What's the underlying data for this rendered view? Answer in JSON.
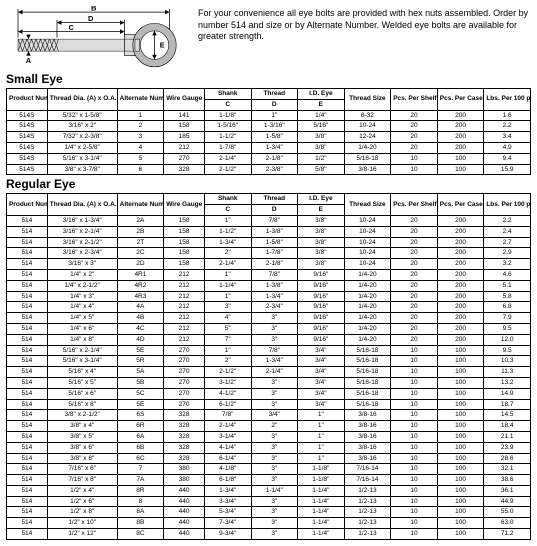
{
  "intro": "For your convenience all eye bolts are provided with hex nuts assembled. Order by number 514 and size or by Alternate Number. Welded eye bolts are available for greater strength.",
  "smallEye": {
    "title": "Small Eye",
    "headers": {
      "prod": "Product Number",
      "threadDia": "Thread Dia. (A) x O.A. Length (B)",
      "alt": "Alternate Number",
      "wire": "Wire Gauge",
      "shank": "Shank",
      "shankSub": "C",
      "thread": "Thread",
      "threadSub": "D",
      "eye": "I.D. Eye",
      "eyeSub": "E",
      "size": "Thread Size",
      "shelf": "Pcs. Per Shelf Box",
      "case": "Pcs. Per Case",
      "lbs": "Lbs. Per 100 pcs."
    },
    "rows": [
      [
        "514S",
        "5/32\" x 1-5/8\"",
        "1",
        "141",
        "1-1/8\"",
        "1\"",
        "1/4\"",
        "8-32",
        "20",
        "200",
        "1.6"
      ],
      [
        "514S",
        "3/16\" x 2\"",
        "2",
        "158",
        "1-5/16\"",
        "1-3/16\"",
        "5/16\"",
        "10-24",
        "20",
        "200",
        "2.2"
      ],
      [
        "514S",
        "7/32\" x 2-3/8\"",
        "3",
        "185",
        "1-1/2\"",
        "1-5/8\"",
        "3/8\"",
        "12-24",
        "20",
        "200",
        "3.4"
      ],
      [
        "514S",
        "1/4\" x 2-5/8\"",
        "4",
        "212",
        "1-7/8\"",
        "1-3/4\"",
        "3/8\"",
        "1/4-20",
        "20",
        "200",
        "4.9"
      ],
      [
        "514S",
        "5/16\" x 3-1/4\"",
        "5",
        "270",
        "2-1/4\"",
        "2-1/8\"",
        "1/2\"",
        "5/16-18",
        "10",
        "100",
        "9.4"
      ],
      [
        "514S",
        "3/8\" x 3-7/8\"",
        "6",
        "328",
        "2-1/2\"",
        "2-3/8\"",
        "5/8\"",
        "3/8-16",
        "10",
        "100",
        "15.9"
      ]
    ]
  },
  "regularEye": {
    "title": "Regular Eye",
    "rows": [
      [
        "514",
        "3/16\" x 1-3/4\"",
        "2A",
        "158",
        "1\"",
        "7/8\"",
        "3/8\"",
        "10-24",
        "20",
        "200",
        "2.2"
      ],
      [
        "514",
        "3/16\" x 2-1/4\"",
        "2B",
        "158",
        "1-1/2\"",
        "1-3/8\"",
        "3/8\"",
        "10-24",
        "20",
        "200",
        "2.4"
      ],
      [
        "514",
        "3/16\" x 2-1/2\"",
        "2T",
        "158",
        "1-3/4\"",
        "1-5/8\"",
        "3/8\"",
        "10-24",
        "20",
        "200",
        "2.7"
      ],
      [
        "514",
        "3/16\" x 2-3/4\"",
        "2C",
        "158",
        "2\"",
        "1-7/8\"",
        "3/8\"",
        "10-24",
        "20",
        "200",
        "2.9"
      ],
      [
        "514",
        "3/16\" x 3\"",
        "2D",
        "158",
        "2-1/4\"",
        "2-1/8\"",
        "3/8\"",
        "10-24",
        "20",
        "200",
        "3.2"
      ],
      [
        "514",
        "1/4\" x 2\"",
        "4R1",
        "212",
        "1\"",
        "7/8\"",
        "9/16\"",
        "1/4-20",
        "20",
        "200",
        "4.6"
      ],
      [
        "514",
        "1/4\" x 2-1/2\"",
        "4R2",
        "212",
        "1-1/4\"",
        "1-3/8\"",
        "9/16\"",
        "1/4-20",
        "20",
        "200",
        "5.1"
      ],
      [
        "514",
        "1/4\" x 3\"",
        "4R3",
        "212",
        "1\"",
        "1-3/4\"",
        "9/16\"",
        "1/4-20",
        "20",
        "200",
        "5.8"
      ],
      [
        "514",
        "1/4\" x 4\"",
        "4A",
        "212",
        "3\"",
        "2-3/4\"",
        "9/16\"",
        "1/4-20",
        "20",
        "200",
        "6.8"
      ],
      [
        "514",
        "1/4\" x 5\"",
        "4B",
        "212",
        "4\"",
        "3\"",
        "9/16\"",
        "1/4-20",
        "20",
        "200",
        "7.9"
      ],
      [
        "514",
        "1/4\" x 6\"",
        "4C",
        "212",
        "5\"",
        "3\"",
        "9/16\"",
        "1/4-20",
        "20",
        "200",
        "9.5"
      ],
      [
        "514",
        "1/4\" x 8\"",
        "4D",
        "212",
        "7\"",
        "3\"",
        "9/16\"",
        "1/4-20",
        "20",
        "200",
        "12.0"
      ],
      [
        "514",
        "5/16\" x 2-1/4\"",
        "5E",
        "270",
        "1\"",
        "7/8\"",
        "3/4\"",
        "5/16-18",
        "10",
        "100",
        "9.5"
      ],
      [
        "514",
        "5/16\" x 3-1/4\"",
        "5R",
        "270",
        "2\"",
        "1-3/4\"",
        "3/4\"",
        "5/16-18",
        "10",
        "100",
        "10.3"
      ],
      [
        "514",
        "5/16\" x 4\"",
        "5A",
        "270",
        "2-1/2\"",
        "2-1/4\"",
        "3/4\"",
        "5/16-18",
        "10",
        "100",
        "11.3"
      ],
      [
        "514",
        "5/16\" x 5\"",
        "5B",
        "270",
        "3-1/2\"",
        "3\"",
        "3/4\"",
        "5/16-18",
        "10",
        "100",
        "13.2"
      ],
      [
        "514",
        "5/16\" x 6\"",
        "5C",
        "270",
        "4-1/2\"",
        "3\"",
        "3/4\"",
        "5/16-18",
        "10",
        "100",
        "14.9"
      ],
      [
        "514",
        "5/16\" x 8\"",
        "5E",
        "270",
        "6-1/2\"",
        "3\"",
        "3/4\"",
        "5/16-18",
        "10",
        "100",
        "18.7"
      ],
      [
        "514",
        "3/8\" x 2-1/2\"",
        "6S",
        "328",
        "7/8\"",
        "3/4\"",
        "1\"",
        "3/8-16",
        "10",
        "100",
        "14.5"
      ],
      [
        "514",
        "3/8\" x 4\"",
        "6R",
        "328",
        "2-1/4\"",
        "2\"",
        "1\"",
        "3/8-16",
        "10",
        "100",
        "18.4"
      ],
      [
        "514",
        "3/8\" x 5\"",
        "6A",
        "328",
        "3-1/4\"",
        "3\"",
        "1\"",
        "3/8-16",
        "10",
        "100",
        "21.1"
      ],
      [
        "514",
        "3/8\" x 6\"",
        "6B",
        "328",
        "4-1/4\"",
        "3\"",
        "1\"",
        "3/8-16",
        "10",
        "100",
        "23.9"
      ],
      [
        "514",
        "3/8\" x 8\"",
        "6C",
        "328",
        "6-1/4\"",
        "3\"",
        "1\"",
        "3/8-16",
        "10",
        "100",
        "28.6"
      ],
      [
        "514",
        "7/16\" x 6\"",
        "7",
        "380",
        "4-1/8\"",
        "3\"",
        "1-1/8\"",
        "7/16-14",
        "10",
        "100",
        "32.1"
      ],
      [
        "514",
        "7/16\" x 8\"",
        "7A",
        "380",
        "6-1/8\"",
        "3\"",
        "1-1/8\"",
        "7/16-14",
        "10",
        "100",
        "38.6"
      ],
      [
        "514",
        "1/2\" x 4\"",
        "8R",
        "440",
        "1-3/4\"",
        "1-1/4\"",
        "1-1/4\"",
        "1/2-13",
        "10",
        "100",
        "36.1"
      ],
      [
        "514",
        "1/2\" x 6\"",
        "8",
        "440",
        "3-3/4\"",
        "3\"",
        "1-1/4\"",
        "1/2-13",
        "10",
        "100",
        "44.9"
      ],
      [
        "514",
        "1/2\" x 8\"",
        "8A",
        "440",
        "5-3/4\"",
        "3\"",
        "1-1/4\"",
        "1/2-13",
        "10",
        "100",
        "55.0"
      ],
      [
        "514",
        "1/2\" x 10\"",
        "8B",
        "440",
        "7-3/4\"",
        "3\"",
        "1-1/4\"",
        "1/2-13",
        "10",
        "100",
        "63.0"
      ],
      [
        "514",
        "1/2\" x 12\"",
        "8C",
        "440",
        "9-3/4\"",
        "3\"",
        "1-1/4\"",
        "1/2-13",
        "10",
        "100",
        "71.2"
      ]
    ]
  },
  "diagram": {
    "labels": {
      "a": "A",
      "b": "B",
      "c": "C",
      "d": "D",
      "e": "E"
    },
    "colors": {
      "line": "#000000",
      "fill": "#cccccc"
    }
  }
}
